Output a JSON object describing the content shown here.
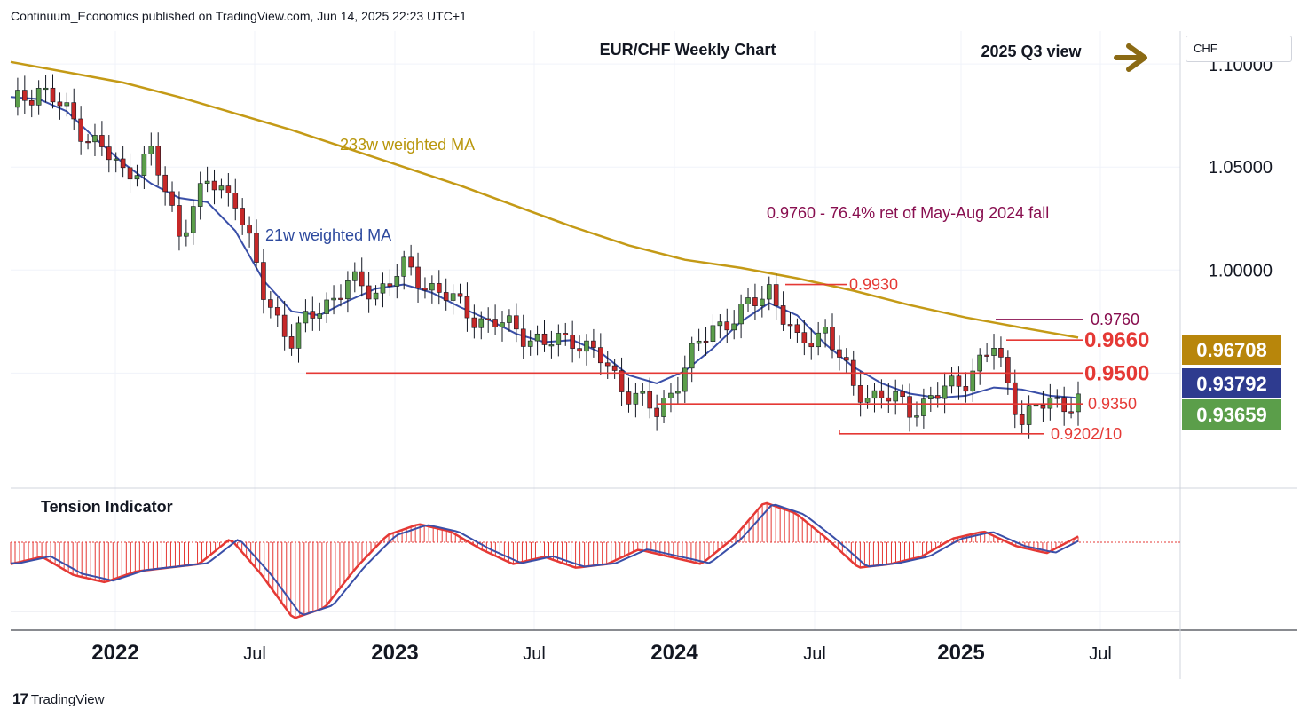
{
  "header": {
    "publisher_line": "Continuum_Economics published on TradingView.com, Jun 14, 2025 22:23 UTC+1"
  },
  "footer": {
    "brand": "TradingView",
    "logo_glyph": "17"
  },
  "currency_box": {
    "label": "CHF"
  },
  "chart_data": {
    "type": "candlestick",
    "title": "EUR/CHF Weekly Chart",
    "view_label": "2025 Q3 view",
    "view_arrow_icon": "right-arrow-icon",
    "y_axis": {
      "ticks": [
        "1.05000",
        "1.00000"
      ],
      "partial_top_tick": "1.10000",
      "range": [
        0.895,
        1.116
      ],
      "side": "right"
    },
    "x_axis": {
      "labels": [
        "2022",
        "Jul",
        "2023",
        "Jul",
        "2024",
        "Jul",
        "2025",
        "Jul"
      ],
      "bold_labels": [
        "2022",
        "2023",
        "2024",
        "2025"
      ]
    },
    "price_labels": [
      {
        "text": "0.96708",
        "value": 0.96708,
        "color": "#b8860b"
      },
      {
        "text": "0.93792",
        "value": 0.93792,
        "color": "#2e3b8f"
      },
      {
        "text": "0.93659",
        "value": 0.93659,
        "color": "#5b9e4a"
      }
    ],
    "levels": [
      {
        "label": "0.9930",
        "value": 0.993,
        "color": "#e53935",
        "style": "normal"
      },
      {
        "label": "0.9760",
        "value": 0.976,
        "color": "#880e4f",
        "style": "normal"
      },
      {
        "label": "0.9660",
        "value": 0.966,
        "color": "#e53935",
        "style": "bold"
      },
      {
        "label": "0.9500",
        "value": 0.95,
        "color": "#e53935",
        "style": "bold"
      },
      {
        "label": "0.9350",
        "value": 0.935,
        "color": "#e53935",
        "style": "normal"
      },
      {
        "label": "0.9202/10",
        "value": 0.9205,
        "color": "#e53935",
        "style": "normal"
      }
    ],
    "annotations": [
      {
        "text": "233w weighted MA",
        "color": "#b8960b"
      },
      {
        "text": "21w weighted MA",
        "color": "#2e4a9e"
      },
      {
        "text": "0.9760 - 76.4% ret of May-Aug 2024 fall",
        "color": "#880e4f"
      }
    ],
    "series": [
      {
        "name": "233w weighted MA",
        "color": "#c49a16",
        "points": [
          [
            0,
            1.101
          ],
          [
            8,
            1.096
          ],
          [
            16,
            1.091
          ],
          [
            24,
            1.084
          ],
          [
            32,
            1.076
          ],
          [
            40,
            1.068
          ],
          [
            48,
            1.059
          ],
          [
            56,
            1.05
          ],
          [
            64,
            1.041
          ],
          [
            72,
            1.031
          ],
          [
            80,
            1.021
          ],
          [
            88,
            1.012
          ],
          [
            96,
            1.005
          ],
          [
            104,
            1.001
          ],
          [
            112,
            0.996
          ],
          [
            120,
            0.99
          ],
          [
            128,
            0.983
          ],
          [
            136,
            0.977
          ],
          [
            144,
            0.972
          ],
          [
            152,
            0.9672
          ]
        ]
      },
      {
        "name": "21w weighted MA",
        "color": "#3a4fa8",
        "points": [
          [
            0,
            1.084
          ],
          [
            4,
            1.083
          ],
          [
            8,
            1.077
          ],
          [
            12,
            1.064
          ],
          [
            16,
            1.052
          ],
          [
            20,
            1.042
          ],
          [
            24,
            1.035
          ],
          [
            28,
            1.033
          ],
          [
            32,
            1.019
          ],
          [
            36,
            0.995
          ],
          [
            40,
            0.98
          ],
          [
            44,
            0.978
          ],
          [
            48,
            0.985
          ],
          [
            52,
            0.991
          ],
          [
            56,
            0.993
          ],
          [
            60,
            0.989
          ],
          [
            64,
            0.982
          ],
          [
            68,
            0.976
          ],
          [
            72,
            0.969
          ],
          [
            76,
            0.965
          ],
          [
            80,
            0.966
          ],
          [
            84,
            0.96
          ],
          [
            88,
            0.949
          ],
          [
            92,
            0.945
          ],
          [
            96,
            0.951
          ],
          [
            100,
            0.962
          ],
          [
            104,
            0.975
          ],
          [
            108,
            0.984
          ],
          [
            112,
            0.978
          ],
          [
            116,
            0.964
          ],
          [
            120,
            0.953
          ],
          [
            124,
            0.945
          ],
          [
            128,
            0.94
          ],
          [
            132,
            0.938
          ],
          [
            136,
            0.939
          ],
          [
            140,
            0.943
          ],
          [
            144,
            0.942
          ],
          [
            148,
            0.939
          ],
          [
            152,
            0.9379
          ]
        ]
      },
      {
        "name": "Candles (approx. weekly)",
        "points": [
          [
            0,
            1.079
          ],
          [
            4,
            1.089
          ],
          [
            8,
            1.076
          ],
          [
            12,
            1.062
          ],
          [
            16,
            1.047
          ],
          [
            20,
            1.056
          ],
          [
            24,
            1.019
          ],
          [
            28,
            1.042
          ],
          [
            32,
            1.036
          ],
          [
            36,
            0.988
          ],
          [
            40,
            0.966
          ],
          [
            44,
            0.982
          ],
          [
            48,
            0.993
          ],
          [
            52,
            0.99
          ],
          [
            56,
            1.0
          ],
          [
            60,
            0.992
          ],
          [
            64,
            0.982
          ],
          [
            68,
            0.974
          ],
          [
            72,
            0.972
          ],
          [
            76,
            0.963
          ],
          [
            80,
            0.968
          ],
          [
            84,
            0.956
          ],
          [
            88,
            0.941
          ],
          [
            92,
            0.93
          ],
          [
            96,
            0.953
          ],
          [
            100,
            0.973
          ],
          [
            104,
            0.978
          ],
          [
            108,
            0.992
          ],
          [
            112,
            0.963
          ],
          [
            116,
            0.972
          ],
          [
            120,
            0.942
          ],
          [
            124,
            0.939
          ],
          [
            128,
            0.933
          ],
          [
            132,
            0.939
          ],
          [
            136,
            0.948
          ],
          [
            140,
            0.962
          ],
          [
            144,
            0.928
          ],
          [
            148,
            0.936
          ],
          [
            152,
            0.9366
          ]
        ]
      }
    ],
    "tension_indicator": {
      "title": "Tension Indicator",
      "fast_line_color": "#e53935",
      "slow_line_color": "#3a4fa8",
      "histogram_color": "#e53935",
      "values": [
        -0.3,
        -0.2,
        -0.45,
        -0.55,
        -0.4,
        -0.35,
        -0.3,
        0.05,
        -0.45,
        -1.05,
        -0.9,
        -0.35,
        0.1,
        0.25,
        0.15,
        -0.1,
        -0.3,
        -0.2,
        -0.35,
        -0.3,
        -0.1,
        -0.2,
        -0.3,
        0.05,
        0.55,
        0.4,
        0.05,
        -0.35,
        -0.3,
        -0.2,
        0.05,
        0.15,
        -0.05,
        -0.15,
        0.08
      ]
    }
  }
}
